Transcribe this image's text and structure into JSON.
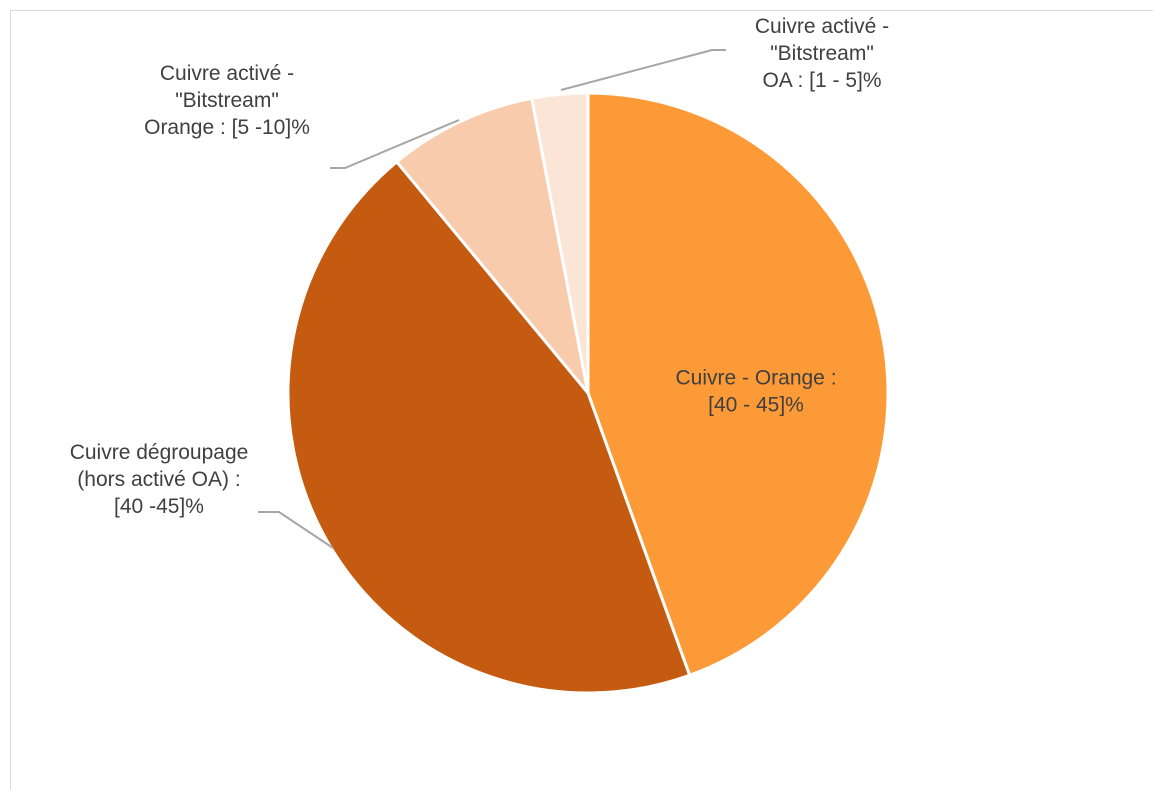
{
  "chart_data": {
    "type": "pie",
    "title": "",
    "start_angle_deg": 0,
    "direction": "clockwise",
    "slices": [
      {
        "name": "Cuivre - Orange",
        "value": 44.5,
        "color": "#FD9A38",
        "label_lines": [
          "Cuivre - Orange :",
          "[40 - 45]%"
        ]
      },
      {
        "name": "Cuivre dégroupage (hors activé OA)",
        "value": 44.5,
        "color": "#C55A11",
        "label_lines": [
          "Cuivre dégroupage",
          "(hors activé OA) :",
          "[40 -45]%"
        ]
      },
      {
        "name": "Cuivre activé - \"Bitstream\" Orange",
        "value": 8.0,
        "color": "#F8CBAD",
        "label_lines": [
          "Cuivre activé -",
          "\"Bitstream\"",
          "Orange : [5 -10]%"
        ]
      },
      {
        "name": "Cuivre activé - \"Bitstream\" OA",
        "value": 3.0,
        "color": "#FBE5D6",
        "label_lines": [
          "Cuivre activé -",
          "\"Bitstream\"",
          "OA : [1 - 5]%"
        ]
      }
    ],
    "legend": "none"
  }
}
